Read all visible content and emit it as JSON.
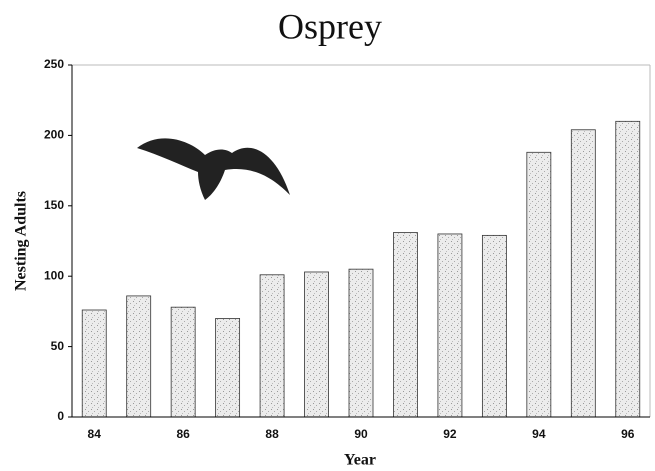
{
  "chart_data": {
    "type": "bar",
    "title": "Osprey",
    "x_label": "Year",
    "y_label": "Nesting Adults",
    "categories": [
      "84",
      null,
      "86",
      null,
      "88",
      null,
      "90",
      null,
      "92",
      null,
      "94",
      null,
      "96"
    ],
    "values": [
      76,
      86,
      78,
      70,
      101,
      103,
      105,
      131,
      130,
      129,
      188,
      204,
      210
    ],
    "color": "#d9d9d9",
    "ylim": [
      0,
      250
    ],
    "yticks": [
      0,
      50,
      100,
      150,
      200,
      250
    ],
    "grid": false
  }
}
